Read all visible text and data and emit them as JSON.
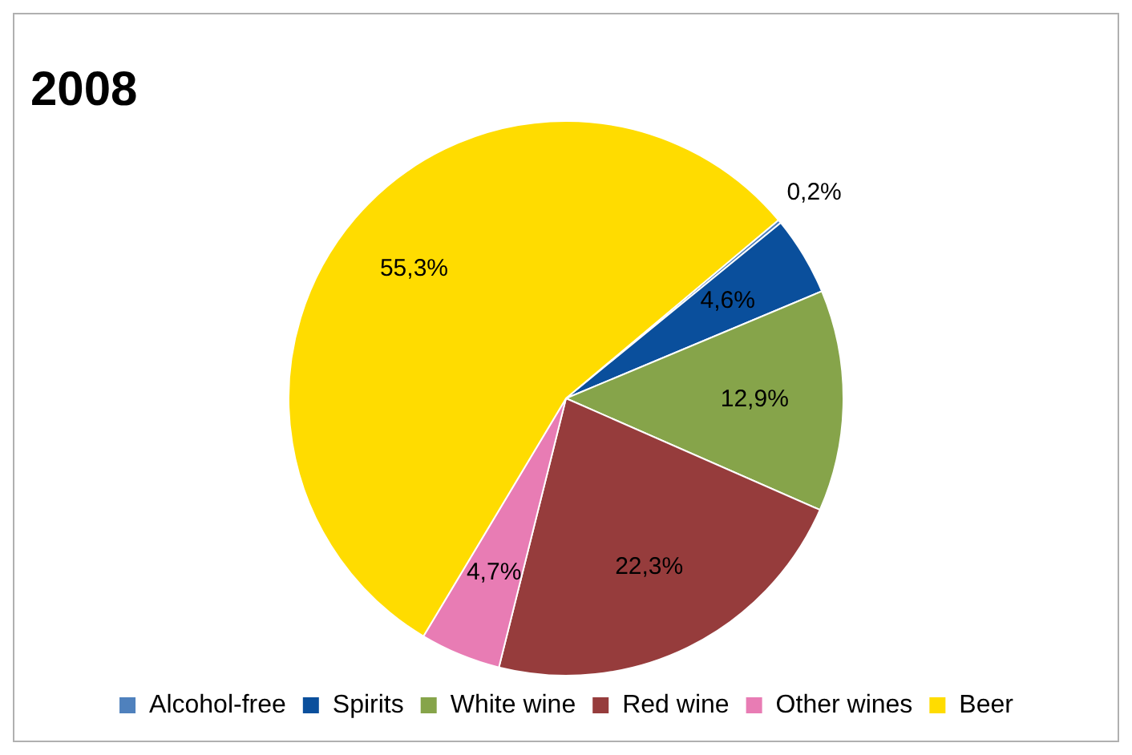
{
  "chart_data": {
    "type": "pie",
    "title": "2008",
    "categories": [
      "Alcohol-free",
      "Spirits",
      "White wine",
      "Red wine",
      "Other wines",
      "Beer"
    ],
    "values": [
      0.2,
      4.6,
      12.9,
      22.3,
      4.7,
      55.3
    ],
    "value_labels": [
      "0,2%",
      "4,6%",
      "12,9%",
      "22,3%",
      "4,7%",
      "55,3%"
    ],
    "colors": [
      "#4f81bd",
      "#0a4f9c",
      "#86a44a",
      "#963c3c",
      "#e87cb4",
      "#ffdc00"
    ],
    "legend": "bottom"
  }
}
